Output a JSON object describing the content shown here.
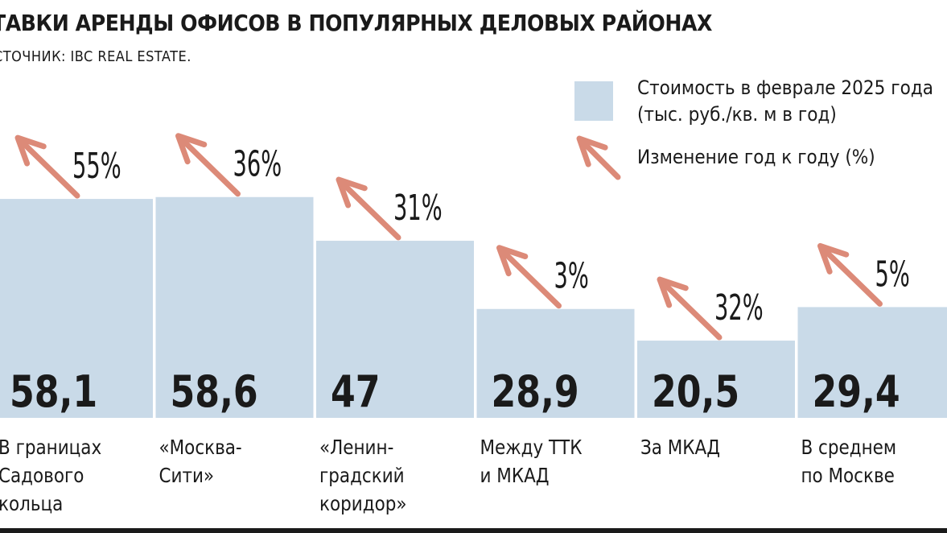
{
  "chart_data": {
    "type": "bar",
    "title": "ТАВКИ АРЕНДЫ ОФИСОВ В ПОПУЛЯРНЫХ ДЕЛОВЫХ РАЙОНАХ",
    "subtitle": "СТОЧНИК: IBC REAL ESTATE.",
    "categories": [
      [
        "В границах",
        "Садового",
        "кольца"
      ],
      [
        "«Москва-",
        "Сити»"
      ],
      [
        "«Ленин-",
        "градский",
        "коридор»"
      ],
      [
        "Между ТТК",
        "и МКАД"
      ],
      [
        "За МКАД"
      ],
      [
        "В среднем",
        "по Москве"
      ]
    ],
    "series": [
      {
        "name": "Стоимость в феврале 2025 года (тыс. руб./кв. м в год)",
        "values": [
          58.1,
          58.6,
          47,
          28.9,
          20.5,
          29.4
        ],
        "value_labels": [
          "58,1",
          "58,6",
          "47",
          "28,9",
          "20,5",
          "29,4"
        ]
      },
      {
        "name": "Изменение год к году (%)",
        "values": [
          55,
          36,
          31,
          3,
          32,
          5
        ],
        "value_labels": [
          "55%",
          "36%",
          "31%",
          "3%",
          "32%",
          "5%"
        ]
      }
    ],
    "legend": {
      "position": "top-right",
      "bar_lines": [
        "Стоимость в феврале 2025 года",
        "(тыс. руб./кв. м в год)"
      ],
      "arrow_line": "Изменение год к году (%)"
    },
    "ylim": [
      0,
      60
    ],
    "grid": false,
    "colors": {
      "bar": "#c9dae8",
      "arrow": "#dc8a78",
      "text": "#1a1a1a"
    }
  }
}
